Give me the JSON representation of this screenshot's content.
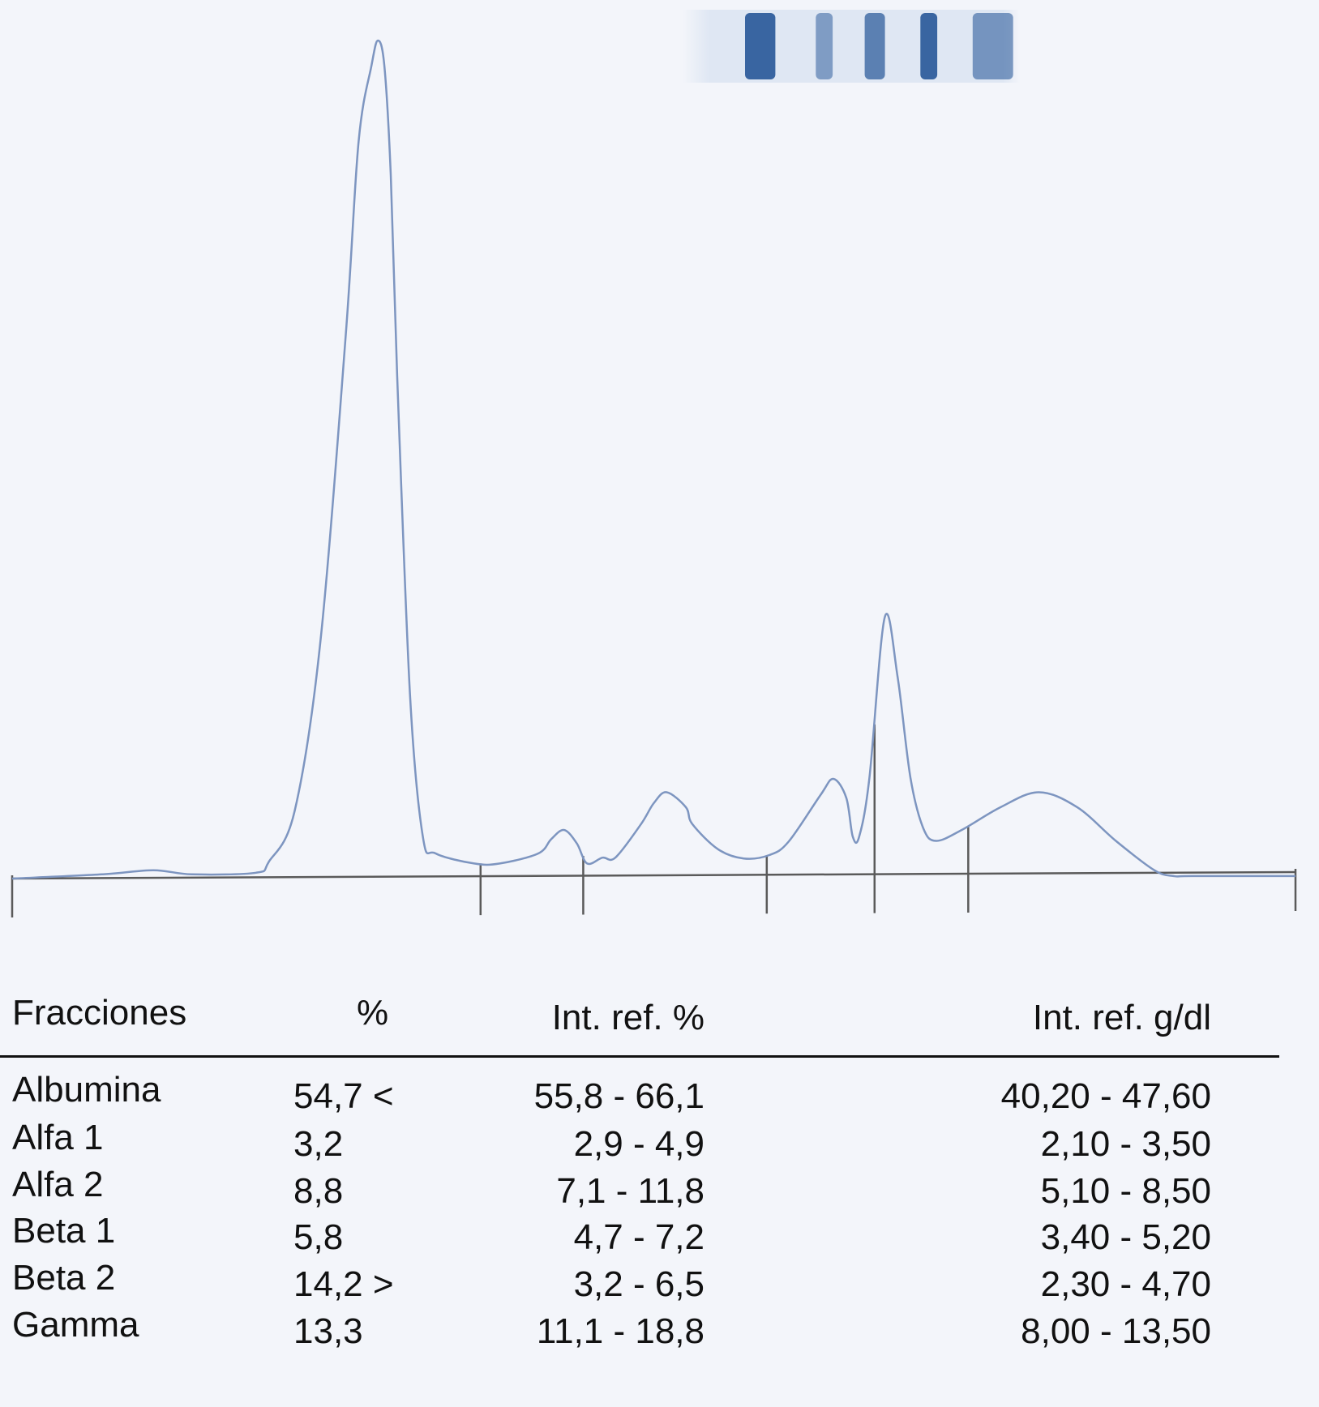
{
  "gel_strip": {
    "bands": [
      {
        "position": 0.23,
        "intensity": 0.95,
        "width": 0.09
      },
      {
        "position": 0.42,
        "intensity": 0.55,
        "width": 0.05
      },
      {
        "position": 0.57,
        "intensity": 0.75,
        "width": 0.06
      },
      {
        "position": 0.73,
        "intensity": 0.95,
        "width": 0.05
      },
      {
        "position": 0.92,
        "intensity": 0.6,
        "width": 0.12
      }
    ],
    "colors": {
      "band": "#2f5e9c",
      "background": "#dfe7f3"
    }
  },
  "chart_data": {
    "type": "line",
    "title": "",
    "xlabel": "",
    "ylabel": "",
    "xlim": [
      0,
      100
    ],
    "ylim": [
      0,
      100
    ],
    "grid": false,
    "curve_color": "#7d95c0",
    "axis_color": "#5a5a5a",
    "series": [
      {
        "x": [
          0,
          7,
          11,
          14,
          19,
          20,
          22,
          24,
          26,
          27,
          28,
          28.5,
          29,
          29.5,
          30,
          31,
          32,
          33,
          36,
          38,
          41,
          42,
          43,
          44,
          44.8,
          46,
          47,
          49,
          50,
          51,
          52.5,
          53,
          55,
          57,
          59,
          60.5,
          63,
          64,
          65,
          65.5,
          66,
          66.8,
          68,
          69,
          70,
          71,
          72,
          74,
          77,
          80,
          83,
          86,
          89,
          90.5,
          92,
          100
        ],
        "values": [
          0,
          0.5,
          1.0,
          0.5,
          0.7,
          2,
          8,
          28,
          65,
          88,
          97,
          100,
          97,
          84,
          60,
          22,
          5,
          3,
          1.8,
          1.8,
          3,
          4.7,
          5.8,
          4.2,
          1.8,
          2.5,
          2.5,
          6.5,
          9.0,
          10.3,
          8.5,
          6.5,
          3.5,
          2.4,
          2.8,
          4.4,
          10.0,
          11.9,
          9.6,
          5.0,
          5.0,
          12.0,
          31.2,
          24.0,
          12.0,
          6.0,
          4.5,
          5.8,
          8.5,
          10.3,
          8.5,
          4.5,
          1.0,
          0.3,
          0.3,
          0.3
        ]
      }
    ],
    "fraction_boundaries": [
      36.5,
      44.5,
      58.8,
      67.2,
      74.5
    ]
  },
  "table": {
    "headers": {
      "name": "Fracciones",
      "pct": "%",
      "ref_pct": "Int. ref. %",
      "ref_gdl": "Int. ref. g/dl"
    },
    "rows": [
      {
        "name": "Albumina",
        "pct": "54,7 <",
        "ref_pct": "55,8 - 66,1",
        "ref_gdl": "40,20 - 47,60"
      },
      {
        "name": "Alfa 1",
        "pct": "3,2",
        "ref_pct": "2,9 - 4,9",
        "ref_gdl": "2,10 - 3,50"
      },
      {
        "name": "Alfa 2",
        "pct": "8,8",
        "ref_pct": "7,1 - 11,8",
        "ref_gdl": "5,10 - 8,50"
      },
      {
        "name": "Beta 1",
        "pct": "5,8",
        "ref_pct": "4,7 - 7,2",
        "ref_gdl": "3,40 - 5,20"
      },
      {
        "name": "Beta 2",
        "pct": "14,2 >",
        "ref_pct": "3,2 - 6,5",
        "ref_gdl": "2,30 - 4,70"
      },
      {
        "name": "Gamma",
        "pct": "13,3",
        "ref_pct": "11,1 - 18,8",
        "ref_gdl": "8,00 - 13,50"
      }
    ]
  }
}
